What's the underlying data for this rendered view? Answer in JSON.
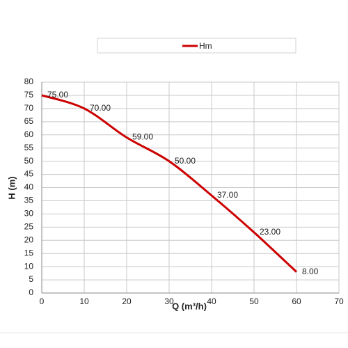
{
  "chart_data": {
    "type": "line",
    "x_label": "Q (m³/h)",
    "y_label": "H (m)",
    "x": [
      0,
      10,
      20,
      30,
      40,
      50,
      60
    ],
    "series": [
      {
        "name": "Hm",
        "color": "#cc0000",
        "values": [
          75,
          70,
          59,
          50,
          37,
          23,
          8
        ],
        "value_labels": [
          "75.00",
          "70.00",
          "59.00",
          "50.00",
          "37.00",
          "23.00",
          "8.00"
        ]
      }
    ],
    "xlim": [
      0,
      70
    ],
    "xticks": [
      0,
      10,
      20,
      30,
      40,
      50,
      60,
      70
    ],
    "ylim": [
      0,
      80
    ],
    "yticks": [
      0,
      5,
      10,
      15,
      20,
      25,
      30,
      35,
      40,
      45,
      50,
      55,
      60,
      65,
      70,
      75,
      80
    ],
    "grid": true,
    "legend": "top"
  }
}
